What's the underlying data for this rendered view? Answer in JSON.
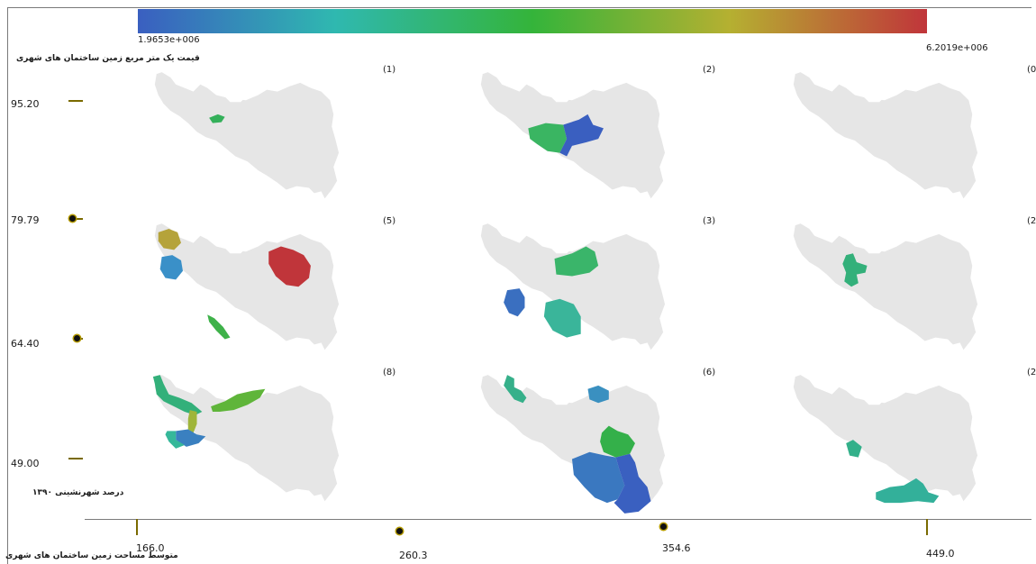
{
  "color_scale": {
    "min_label": "1.9653e+006",
    "max_label": "6.2019e+006",
    "title": "قیمت یک متر مربع زمین ساختمان های شهری",
    "stops": [
      "#3a5fc0",
      "#2fb8b0",
      "#34b43a",
      "#b5b031",
      "#c0353a"
    ]
  },
  "y_axis": {
    "title": "درصد شهرنشینی ۱۳۹۰",
    "ticks": [
      "95.20",
      "79.79",
      "64.40",
      "49.00"
    ]
  },
  "x_axis": {
    "title": "متوسط مساحت زمین ساختمان های شهری",
    "ticks": [
      "166.0",
      "260.3",
      "354.6",
      "449.0"
    ]
  },
  "panels": [
    {
      "label": "(1)",
      "regions": [
        {
          "color": "#34b05a"
        }
      ]
    },
    {
      "label": "(2)",
      "regions": [
        {
          "color": "#3ab562"
        },
        {
          "color": "#3a5fc0"
        }
      ]
    },
    {
      "label": "(0",
      "regions": []
    },
    {
      "label": "(5)",
      "regions": [
        {
          "color": "#b5a33a"
        },
        {
          "color": "#3a90c8"
        },
        {
          "color": "#c0353a"
        },
        {
          "color": "#3fb24a"
        }
      ]
    },
    {
      "label": "(3)",
      "regions": [
        {
          "color": "#3ab56a"
        },
        {
          "color": "#3a6fc0"
        },
        {
          "color": "#3ab59a"
        }
      ]
    },
    {
      "label": "(2",
      "regions": [
        {
          "color": "#33b07a"
        }
      ]
    },
    {
      "label": "(8)",
      "regions": [
        {
          "color": "#33b07a"
        },
        {
          "color": "#5fb53a"
        },
        {
          "color": "#9fb53a"
        },
        {
          "color": "#3a80c0"
        },
        {
          "color": "#36b89a"
        }
      ]
    },
    {
      "label": "(6)",
      "regions": [
        {
          "color": "#36b08a"
        },
        {
          "color": "#3a90c0"
        },
        {
          "color": "#34b04a"
        },
        {
          "color": "#3a78c0"
        },
        {
          "color": "#3a60c0"
        }
      ]
    },
    {
      "label": "(2",
      "regions": [
        {
          "color": "#33b08a"
        },
        {
          "color": "#33b09a"
        }
      ]
    }
  ]
}
